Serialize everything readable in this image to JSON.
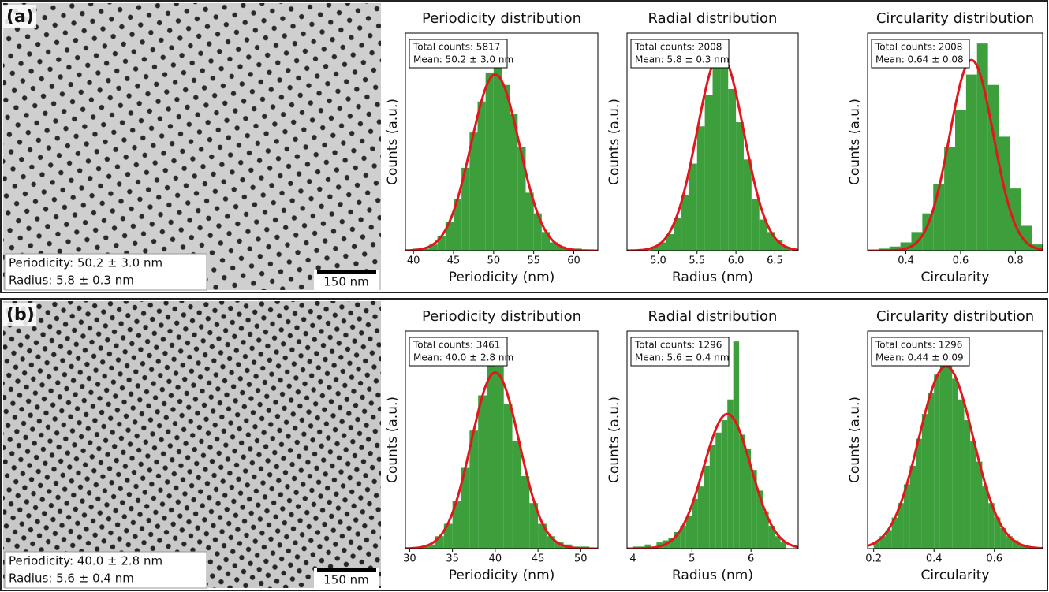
{
  "panels": [
    {
      "label": "(a)",
      "micrograph": {
        "annotations": [
          "Periodicity: 50.2 ± 3.0 nm",
          "Radius: 5.8 ± 0.3 nm"
        ],
        "scale_bar": "150 nm"
      }
    },
    {
      "label": "(b)",
      "micrograph": {
        "annotations": [
          "Periodicity: 40.0 ± 2.8 nm",
          "Radius: 5.6 ± 0.4 nm"
        ],
        "scale_bar": "150 nm"
      }
    }
  ],
  "chart_data": [
    {
      "type": "histogram",
      "title": "Periodicity distribution",
      "xlabel": "Periodicity (nm)",
      "ylabel": "Counts (a.u.)",
      "box_lines": [
        "Total counts: 5817",
        "Mean: 50.2 ± 3.0 nm"
      ],
      "color": "#3c9f3c",
      "xlim": [
        39,
        63
      ],
      "xticks": [
        40,
        45,
        50,
        55,
        60
      ],
      "ylim": [
        0,
        105
      ],
      "bins": [
        40,
        41,
        42,
        43,
        44,
        45,
        46,
        47,
        48,
        49,
        50,
        51,
        52,
        53,
        54,
        55,
        56,
        57,
        58,
        59,
        60,
        61,
        62
      ],
      "values": [
        1,
        1,
        3,
        7,
        14,
        25,
        40,
        57,
        72,
        86,
        100,
        80,
        66,
        50,
        28,
        18,
        9,
        4,
        2,
        1,
        1,
        0
      ],
      "fit": {
        "mean": 50.2,
        "sd": 3.0,
        "peak": 85,
        "color": "#e3161b"
      }
    },
    {
      "type": "histogram",
      "title": "Radial distribution",
      "xlabel": "Radius (nm)",
      "ylabel": "Counts (a.u.)",
      "box_lines": [
        "Total counts: 2008",
        "Mean: 5.8 ± 0.3 nm"
      ],
      "color": "#3c9f3c",
      "xlim": [
        4.6,
        6.8
      ],
      "xticks": [
        {
          "value": 5,
          "label": "5.0"
        },
        5.5,
        {
          "value": 6,
          "label": "6.0"
        },
        6.5
      ],
      "ylim": [
        0,
        105
      ],
      "bins": [
        4.9,
        5.0,
        5.1,
        5.2,
        5.3,
        5.4,
        5.5,
        5.6,
        5.7,
        5.8,
        5.9,
        6.0,
        6.1,
        6.2,
        6.3,
        6.4,
        6.5,
        6.6,
        6.7
      ],
      "values": [
        2,
        4,
        8,
        16,
        27,
        42,
        60,
        75,
        90,
        100,
        78,
        62,
        44,
        25,
        15,
        9,
        5,
        2
      ],
      "fit": {
        "mean": 5.8,
        "sd": 0.3,
        "peak": 95,
        "color": "#e3161b"
      }
    },
    {
      "type": "histogram",
      "title": "Circularity distribution",
      "xlabel": "Circularity",
      "ylabel": "Counts (a.u.)",
      "box_lines": [
        "Total counts: 2008",
        "Mean: 0.64 ± 0.08"
      ],
      "color": "#3c9f3c",
      "xlim": [
        0.26,
        0.9
      ],
      "xticks": [
        0.4,
        0.6,
        0.8
      ],
      "ylim": [
        0,
        105
      ],
      "bins": [
        0.3,
        0.34,
        0.38,
        0.42,
        0.46,
        0.5,
        0.54,
        0.58,
        0.62,
        0.66,
        0.7,
        0.74,
        0.78,
        0.82,
        0.86,
        0.9
      ],
      "values": [
        1,
        2,
        4,
        9,
        18,
        32,
        50,
        68,
        85,
        100,
        80,
        55,
        30,
        12,
        3
      ],
      "fit": {
        "mean": 0.64,
        "sd": 0.08,
        "peak": 92,
        "color": "#e3161b"
      }
    },
    {
      "type": "histogram",
      "title": "Periodicity distribution",
      "xlabel": "Periodicity (nm)",
      "ylabel": "Counts (a.u.)",
      "box_lines": [
        "Total counts: 3461",
        "Mean: 40.0 ± 2.8 nm"
      ],
      "color": "#3c9f3c",
      "xlim": [
        29.5,
        52
      ],
      "xticks": [
        30,
        35,
        40,
        45,
        50
      ],
      "ylim": [
        0,
        105
      ],
      "bins": [
        30,
        31,
        32,
        33,
        34,
        35,
        36,
        37,
        38,
        39,
        40,
        41,
        42,
        43,
        44,
        45,
        46,
        47,
        48,
        49,
        50,
        51
      ],
      "values": [
        0,
        1,
        2,
        6,
        12,
        23,
        39,
        57,
        74,
        100,
        88,
        70,
        52,
        35,
        22,
        12,
        6,
        3,
        2,
        1,
        1
      ],
      "fit": {
        "mean": 40.0,
        "sd": 2.8,
        "peak": 85,
        "color": "#e3161b"
      }
    },
    {
      "type": "histogram",
      "title": "Radial distribution",
      "xlabel": "Radius (nm)",
      "ylabel": "Counts (a.u.)",
      "box_lines": [
        "Total counts: 1296",
        "Mean: 5.6 ± 0.4 nm"
      ],
      "color": "#3c9f3c",
      "xlim": [
        3.9,
        6.8
      ],
      "xticks": [
        4,
        5,
        6
      ],
      "ylim": [
        0,
        105
      ],
      "bins": [
        4.0,
        4.1,
        4.2,
        4.3,
        4.4,
        4.5,
        4.6,
        4.7,
        4.8,
        4.9,
        5.0,
        5.1,
        5.2,
        5.3,
        5.4,
        5.5,
        5.6,
        5.7,
        5.8,
        5.9,
        6.0,
        6.1,
        6.2,
        6.3,
        6.4,
        6.5,
        6.6
      ],
      "values": [
        1,
        1,
        2,
        1,
        3,
        4,
        5,
        8,
        11,
        16,
        24,
        30,
        40,
        50,
        56,
        62,
        72,
        100,
        55,
        48,
        38,
        28,
        18,
        11,
        6,
        3
      ],
      "fit": {
        "mean": 5.6,
        "sd": 0.4,
        "peak": 65,
        "color": "#e3161b"
      }
    },
    {
      "type": "histogram",
      "title": "Circularity distribution",
      "xlabel": "Circularity",
      "ylabel": "Counts (a.u.)",
      "box_lines": [
        "Total counts: 1296",
        "Mean: 0.44 ± 0.09"
      ],
      "color": "#3c9f3c",
      "xlim": [
        0.18,
        0.76
      ],
      "xticks": [
        0.2,
        0.4,
        0.6
      ],
      "ylim": [
        0,
        105
      ],
      "bins": [
        0.2,
        0.22,
        0.24,
        0.26,
        0.28,
        0.3,
        0.32,
        0.34,
        0.36,
        0.38,
        0.4,
        0.42,
        0.44,
        0.46,
        0.48,
        0.5,
        0.52,
        0.54,
        0.56,
        0.58,
        0.6,
        0.62,
        0.64,
        0.66,
        0.68,
        0.7,
        0.72,
        0.74
      ],
      "values": [
        3,
        6,
        9,
        15,
        22,
        31,
        40,
        53,
        65,
        75,
        84,
        100,
        90,
        82,
        72,
        62,
        52,
        42,
        30,
        22,
        15,
        10,
        6,
        4,
        2,
        1,
        1
      ],
      "fit": {
        "mean": 0.44,
        "sd": 0.09,
        "peak": 88,
        "color": "#e3161b"
      }
    }
  ]
}
